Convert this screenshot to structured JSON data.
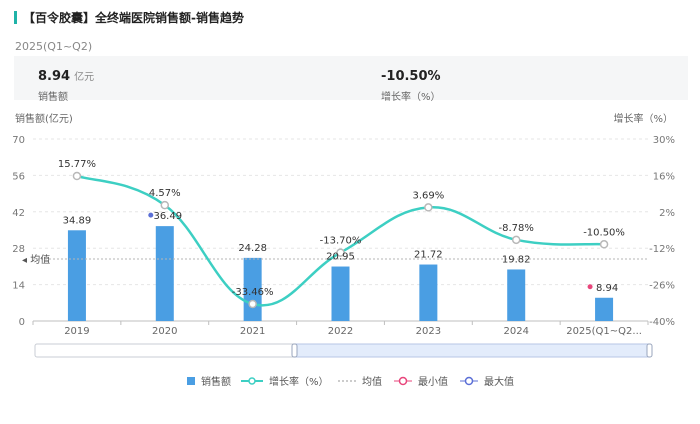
{
  "header": {
    "title": "【百令胶囊】全终端医院销售额-销售趋势",
    "period": "2025(Q1~Q2)"
  },
  "summary": {
    "sales_value": "8.94",
    "sales_unit": "亿元",
    "sales_label": "销售额",
    "growth_value": "-10.50%",
    "growth_label": "增长率（%）"
  },
  "colors": {
    "bar": "#4a9ee3",
    "line": "#3dcfc3",
    "min_marker": "#e8457b",
    "max_marker": "#5b6fd6",
    "title_accent": "#1fb3a8"
  },
  "chart_data": {
    "type": "bar",
    "categories": [
      "2019",
      "2020",
      "2021",
      "2022",
      "2023",
      "2024",
      "2025(Q1~Q2)"
    ],
    "category_labels": [
      "2019",
      "2020",
      "2021",
      "2022",
      "2023",
      "2024",
      "2025(Q1~Q2..."
    ],
    "series": [
      {
        "name": "销售额",
        "type": "bar",
        "axis": "left",
        "values": [
          34.89,
          36.49,
          24.28,
          20.95,
          21.72,
          19.82,
          8.94
        ]
      },
      {
        "name": "增长率（%）",
        "type": "line",
        "axis": "right",
        "smooth": true,
        "values": [
          15.77,
          4.57,
          -33.46,
          -13.7,
          3.69,
          -8.78,
          -10.5
        ]
      }
    ],
    "bar_labels": [
      "34.89",
      "36.49",
      "24.28",
      "20.95",
      "21.72",
      "19.82",
      "8.94"
    ],
    "line_labels": [
      "15.77%",
      "4.57%",
      "-33.46%",
      "-13.70%",
      "3.69%",
      "-8.78%",
      "-10.50%"
    ],
    "left_axis": {
      "title": "销售额(亿元)",
      "min": 0,
      "max": 70,
      "ticks": [
        0,
        14,
        28,
        42,
        56,
        70
      ],
      "tick_labels": [
        "0",
        "14",
        "28",
        "42",
        "56",
        "70"
      ]
    },
    "right_axis": {
      "title": "增长率（%）",
      "min": -40,
      "max": 30,
      "ticks": [
        -40,
        -26,
        -12,
        2,
        16,
        30
      ],
      "tick_labels": [
        "-40%",
        "-26%",
        "-12%",
        "2%",
        "16%",
        "30%"
      ]
    },
    "average": {
      "label": "均值",
      "value": 23.87
    },
    "min_index": 6,
    "max_index": 1,
    "grid": true,
    "legend": {
      "position": "bottom",
      "items": [
        "销售额",
        "增长率（%）",
        "均值",
        "最小值",
        "最大值"
      ]
    }
  }
}
